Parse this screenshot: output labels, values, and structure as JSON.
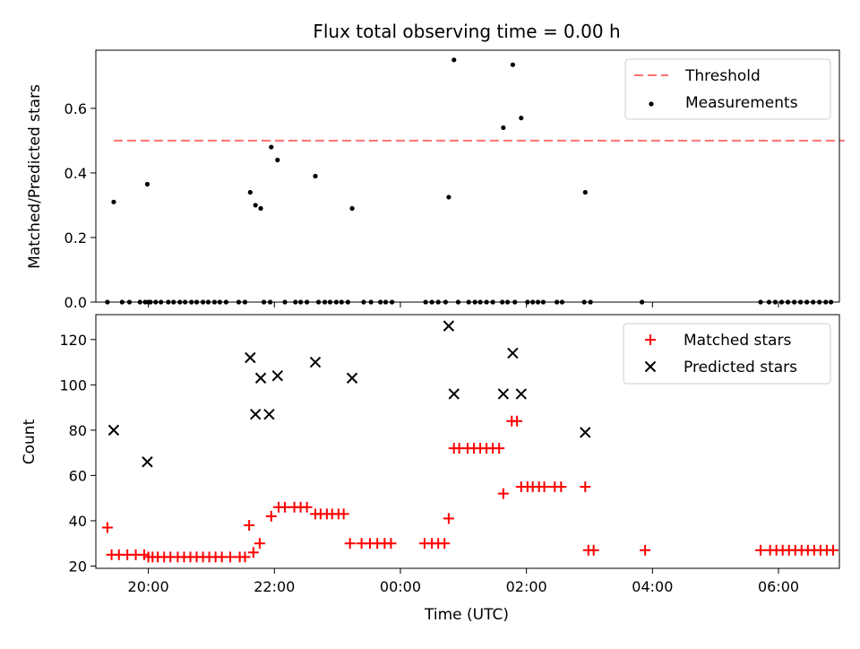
{
  "chart_data": [
    {
      "type": "scatter",
      "title": "Flux total observing time = 0.00 h",
      "xlabel": "",
      "ylabel": "Matched/Predicted stars",
      "xlim": [
        "19:10",
        "06:58"
      ],
      "ylim": [
        0,
        0.78
      ],
      "yticks": [
        0.0,
        0.2,
        0.4,
        0.6
      ],
      "ytick_labels": [
        "0.0",
        "0.2",
        "0.4",
        "0.6"
      ],
      "xticks": [
        "20:00",
        "22:00",
        "00:00",
        "02:00",
        "04:00",
        "06:00"
      ],
      "grid": false,
      "legend_position": "top-right",
      "threshold": {
        "name": "Threshold",
        "value": 0.5,
        "x_start": "19:27",
        "x_end": "07:03",
        "color": "#ff7070",
        "style": "dashed"
      },
      "measurements": {
        "name": "Measurements",
        "color": "#000000",
        "points": [
          {
            "x": "19:21",
            "y": 0.0
          },
          {
            "x": "19:27",
            "y": 0.31
          },
          {
            "x": "19:35",
            "y": 0.0
          },
          {
            "x": "19:42",
            "y": 0.0
          },
          {
            "x": "19:52",
            "y": 0.0
          },
          {
            "x": "19:57",
            "y": 0.0
          },
          {
            "x": "20:00",
            "y": 0.0
          },
          {
            "x": "20:02",
            "y": 0.0
          },
          {
            "x": "19:59",
            "y": 0.365
          },
          {
            "x": "20:07",
            "y": 0.0
          },
          {
            "x": "20:12",
            "y": 0.0
          },
          {
            "x": "20:19",
            "y": 0.0
          },
          {
            "x": "20:24",
            "y": 0.0
          },
          {
            "x": "20:30",
            "y": 0.0
          },
          {
            "x": "20:35",
            "y": 0.0
          },
          {
            "x": "20:41",
            "y": 0.0
          },
          {
            "x": "20:46",
            "y": 0.0
          },
          {
            "x": "20:52",
            "y": 0.0
          },
          {
            "x": "20:57",
            "y": 0.0
          },
          {
            "x": "21:03",
            "y": 0.0
          },
          {
            "x": "21:08",
            "y": 0.0
          },
          {
            "x": "21:14",
            "y": 0.0
          },
          {
            "x": "21:26",
            "y": 0.0
          },
          {
            "x": "21:32",
            "y": 0.0
          },
          {
            "x": "21:37",
            "y": 0.34
          },
          {
            "x": "21:42",
            "y": 0.3
          },
          {
            "x": "21:47",
            "y": 0.29
          },
          {
            "x": "21:50",
            "y": 0.0
          },
          {
            "x": "21:56",
            "y": 0.0
          },
          {
            "x": "21:57",
            "y": 0.48
          },
          {
            "x": "22:03",
            "y": 0.44
          },
          {
            "x": "22:10",
            "y": 0.0
          },
          {
            "x": "22:20",
            "y": 0.0
          },
          {
            "x": "22:25",
            "y": 0.0
          },
          {
            "x": "22:31",
            "y": 0.0
          },
          {
            "x": "22:39",
            "y": 0.39
          },
          {
            "x": "22:42",
            "y": 0.0
          },
          {
            "x": "22:48",
            "y": 0.0
          },
          {
            "x": "22:53",
            "y": 0.0
          },
          {
            "x": "22:59",
            "y": 0.0
          },
          {
            "x": "23:04",
            "y": 0.0
          },
          {
            "x": "23:10",
            "y": 0.0
          },
          {
            "x": "23:14",
            "y": 0.29
          },
          {
            "x": "23:25",
            "y": 0.0
          },
          {
            "x": "23:32",
            "y": 0.0
          },
          {
            "x": "23:41",
            "y": 0.0
          },
          {
            "x": "23:46",
            "y": 0.0
          },
          {
            "x": "23:52",
            "y": 0.0
          },
          {
            "x": "00:24",
            "y": 0.0
          },
          {
            "x": "00:30",
            "y": 0.0
          },
          {
            "x": "00:36",
            "y": 0.0
          },
          {
            "x": "00:43",
            "y": 0.0
          },
          {
            "x": "00:46",
            "y": 0.325
          },
          {
            "x": "00:51",
            "y": 0.75
          },
          {
            "x": "00:55",
            "y": 0.0
          },
          {
            "x": "01:05",
            "y": 0.0
          },
          {
            "x": "01:11",
            "y": 0.0
          },
          {
            "x": "01:16",
            "y": 0.0
          },
          {
            "x": "01:22",
            "y": 0.0
          },
          {
            "x": "01:28",
            "y": 0.0
          },
          {
            "x": "01:37",
            "y": 0.0
          },
          {
            "x": "01:42",
            "y": 0.0
          },
          {
            "x": "01:38",
            "y": 0.54
          },
          {
            "x": "01:47",
            "y": 0.735
          },
          {
            "x": "01:49",
            "y": 0.0
          },
          {
            "x": "01:55",
            "y": 0.57
          },
          {
            "x": "02:01",
            "y": 0.0
          },
          {
            "x": "02:06",
            "y": 0.0
          },
          {
            "x": "02:11",
            "y": 0.0
          },
          {
            "x": "02:16",
            "y": 0.0
          },
          {
            "x": "02:29",
            "y": 0.0
          },
          {
            "x": "02:34",
            "y": 0.0
          },
          {
            "x": "02:55",
            "y": 0.0
          },
          {
            "x": "02:56",
            "y": 0.34
          },
          {
            "x": "03:01",
            "y": 0.0
          },
          {
            "x": "03:50",
            "y": 0.0
          },
          {
            "x": "05:43",
            "y": 0.0
          },
          {
            "x": "05:51",
            "y": 0.0
          },
          {
            "x": "05:57",
            "y": 0.0
          },
          {
            "x": "06:03",
            "y": 0.0
          },
          {
            "x": "06:09",
            "y": 0.0
          },
          {
            "x": "06:15",
            "y": 0.0
          },
          {
            "x": "06:21",
            "y": 0.0
          },
          {
            "x": "06:27",
            "y": 0.0
          },
          {
            "x": "06:33",
            "y": 0.0
          },
          {
            "x": "06:39",
            "y": 0.0
          },
          {
            "x": "06:45",
            "y": 0.0
          },
          {
            "x": "06:50",
            "y": 0.0
          }
        ]
      }
    },
    {
      "type": "scatter",
      "title": "",
      "xlabel": "Time (UTC)",
      "ylabel": "Count",
      "xlim": [
        "19:10",
        "06:58"
      ],
      "ylim": [
        19,
        131
      ],
      "yticks": [
        20,
        40,
        60,
        80,
        100,
        120
      ],
      "xticks": [
        "20:00",
        "22:00",
        "00:00",
        "02:00",
        "04:00",
        "06:00"
      ],
      "grid": false,
      "legend_position": "top-right",
      "series": [
        {
          "name": "Matched stars",
          "marker": "plus",
          "color": "#ff0000",
          "points": [
            {
              "x": "19:21",
              "y": 37
            },
            {
              "x": "19:25",
              "y": 25
            },
            {
              "x": "19:32",
              "y": 25
            },
            {
              "x": "19:40",
              "y": 25
            },
            {
              "x": "19:48",
              "y": 25
            },
            {
              "x": "19:56",
              "y": 25
            },
            {
              "x": "20:00",
              "y": 24
            },
            {
              "x": "20:04",
              "y": 24
            },
            {
              "x": "20:09",
              "y": 24
            },
            {
              "x": "20:15",
              "y": 24
            },
            {
              "x": "20:21",
              "y": 24
            },
            {
              "x": "20:28",
              "y": 24
            },
            {
              "x": "20:34",
              "y": 24
            },
            {
              "x": "20:40",
              "y": 24
            },
            {
              "x": "20:46",
              "y": 24
            },
            {
              "x": "20:52",
              "y": 24
            },
            {
              "x": "20:58",
              "y": 24
            },
            {
              "x": "21:04",
              "y": 24
            },
            {
              "x": "21:10",
              "y": 24
            },
            {
              "x": "21:18",
              "y": 24
            },
            {
              "x": "21:27",
              "y": 24
            },
            {
              "x": "21:32",
              "y": 24
            },
            {
              "x": "21:36",
              "y": 38
            },
            {
              "x": "21:40",
              "y": 26
            },
            {
              "x": "21:46",
              "y": 30
            },
            {
              "x": "21:57",
              "y": 42
            },
            {
              "x": "22:04",
              "y": 46
            },
            {
              "x": "22:10",
              "y": 46
            },
            {
              "x": "22:19",
              "y": 46
            },
            {
              "x": "22:25",
              "y": 46
            },
            {
              "x": "22:31",
              "y": 46
            },
            {
              "x": "22:39",
              "y": 43
            },
            {
              "x": "22:44",
              "y": 43
            },
            {
              "x": "22:50",
              "y": 43
            },
            {
              "x": "22:55",
              "y": 43
            },
            {
              "x": "23:01",
              "y": 43
            },
            {
              "x": "23:06",
              "y": 43
            },
            {
              "x": "23:12",
              "y": 30
            },
            {
              "x": "23:23",
              "y": 30
            },
            {
              "x": "23:31",
              "y": 30
            },
            {
              "x": "23:38",
              "y": 30
            },
            {
              "x": "23:45",
              "y": 30
            },
            {
              "x": "23:51",
              "y": 30
            },
            {
              "x": "00:23",
              "y": 30
            },
            {
              "x": "00:30",
              "y": 30
            },
            {
              "x": "00:36",
              "y": 30
            },
            {
              "x": "00:42",
              "y": 30
            },
            {
              "x": "00:46",
              "y": 41
            },
            {
              "x": "00:51",
              "y": 72
            },
            {
              "x": "00:56",
              "y": 72
            },
            {
              "x": "01:04",
              "y": 72
            },
            {
              "x": "01:10",
              "y": 72
            },
            {
              "x": "01:16",
              "y": 72
            },
            {
              "x": "01:22",
              "y": 72
            },
            {
              "x": "01:28",
              "y": 72
            },
            {
              "x": "01:34",
              "y": 72
            },
            {
              "x": "01:38",
              "y": 52
            },
            {
              "x": "01:46",
              "y": 84
            },
            {
              "x": "01:51",
              "y": 84
            },
            {
              "x": "01:55",
              "y": 55
            },
            {
              "x": "02:01",
              "y": 55
            },
            {
              "x": "02:06",
              "y": 55
            },
            {
              "x": "02:12",
              "y": 55
            },
            {
              "x": "02:17",
              "y": 55
            },
            {
              "x": "02:27",
              "y": 55
            },
            {
              "x": "02:33",
              "y": 55
            },
            {
              "x": "02:56",
              "y": 55
            },
            {
              "x": "02:59",
              "y": 27
            },
            {
              "x": "03:04",
              "y": 27
            },
            {
              "x": "03:53",
              "y": 27
            },
            {
              "x": "05:43",
              "y": 27
            },
            {
              "x": "05:52",
              "y": 27
            },
            {
              "x": "05:58",
              "y": 27
            },
            {
              "x": "06:04",
              "y": 27
            },
            {
              "x": "06:10",
              "y": 27
            },
            {
              "x": "06:16",
              "y": 27
            },
            {
              "x": "06:22",
              "y": 27
            },
            {
              "x": "06:28",
              "y": 27
            },
            {
              "x": "06:34",
              "y": 27
            },
            {
              "x": "06:40",
              "y": 27
            },
            {
              "x": "06:46",
              "y": 27
            },
            {
              "x": "06:52",
              "y": 27
            }
          ]
        },
        {
          "name": "Predicted stars",
          "marker": "x",
          "color": "#000000",
          "points": [
            {
              "x": "19:27",
              "y": 80
            },
            {
              "x": "19:59",
              "y": 66
            },
            {
              "x": "21:37",
              "y": 112
            },
            {
              "x": "21:42",
              "y": 87
            },
            {
              "x": "21:47",
              "y": 103
            },
            {
              "x": "21:55",
              "y": 87
            },
            {
              "x": "22:03",
              "y": 104
            },
            {
              "x": "22:39",
              "y": 110
            },
            {
              "x": "23:14",
              "y": 103
            },
            {
              "x": "00:46",
              "y": 126
            },
            {
              "x": "00:51",
              "y": 96
            },
            {
              "x": "01:38",
              "y": 96
            },
            {
              "x": "01:47",
              "y": 114
            },
            {
              "x": "01:55",
              "y": 96
            },
            {
              "x": "02:56",
              "y": 79
            }
          ]
        }
      ]
    }
  ]
}
